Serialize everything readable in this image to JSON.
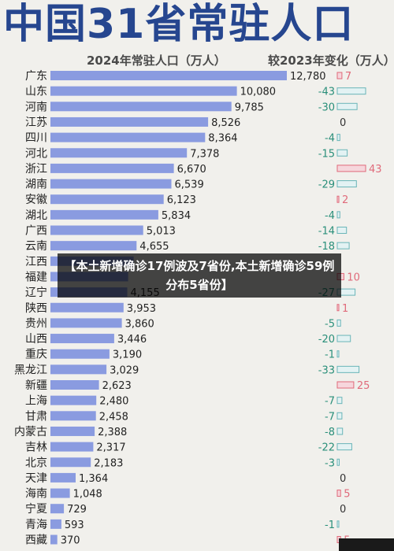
{
  "header": {
    "title": "中国31省常驻人口",
    "subtitle_left": "2024年常驻人口（万人）",
    "subtitle_right": "较2023年变化（万人）"
  },
  "overlay": {
    "text": "【本土新增确诊17例波及7省份,本土新增确诊59例 分布5省份】"
  },
  "colors": {
    "bar": "#8a9be0",
    "positive": "#e06a7a",
    "negative": "#2a8f7a",
    "zero": "#333333",
    "title": "#26468f"
  },
  "chart_data": {
    "type": "bar",
    "orientation": "horizontal",
    "title": "中国31省常驻人口",
    "series": [
      {
        "name": "2024年常驻人口（万人）",
        "values": [
          12780,
          10080,
          9785,
          8526,
          8364,
          7378,
          6670,
          6539,
          6123,
          5834,
          5013,
          4655,
          4500,
          4200,
          4155,
          3953,
          3860,
          3446,
          3190,
          3029,
          2623,
          2480,
          2458,
          2388,
          2317,
          2183,
          1364,
          1048,
          729,
          593,
          370
        ]
      },
      {
        "name": "较2023年变化（万人）",
        "values": [
          7,
          -43,
          -30,
          0,
          -4,
          -15,
          43,
          -29,
          2,
          -4,
          -14,
          -18,
          null,
          10,
          -27,
          1,
          -5,
          -20,
          -1,
          -33,
          25,
          -7,
          -7,
          -8,
          -22,
          -3,
          0,
          5,
          0,
          -1,
          5
        ]
      }
    ],
    "categories": [
      "广东",
      "山东",
      "河南",
      "江苏",
      "四川",
      "河北",
      "浙江",
      "湖南",
      "安徽",
      "湖北",
      "广西",
      "云南",
      "江西",
      "福建",
      "辽宁",
      "陕西",
      "贵州",
      "山西",
      "重庆",
      "黑龙江",
      "新疆",
      "上海",
      "甘肃",
      "内蒙古",
      "吉林",
      "北京",
      "天津",
      "海南",
      "宁夏",
      "青海",
      "西藏"
    ],
    "value_labels": [
      "12,780",
      "10,080",
      "9,785",
      "8,526",
      "8,364",
      "7,378",
      "6,670",
      "6,539",
      "6,123",
      "5,834",
      "5,013",
      "4,655",
      "",
      "",
      "4,155",
      "3,953",
      "3,860",
      "3,446",
      "3,190",
      "3,029",
      "2,623",
      "2,480",
      "2,458",
      "2,388",
      "2,317",
      "2,183",
      "1,364",
      "1,048",
      "729",
      "593",
      "370"
    ],
    "change_labels": [
      "7",
      "-43",
      "-30",
      "0",
      "-4",
      "-15",
      "43",
      "-29",
      "2",
      "-4",
      "-14",
      "-18",
      "",
      "10",
      "-27",
      "1",
      "-5",
      "-20",
      "-1",
      "-33",
      "25",
      "-7",
      "-7",
      "-8",
      "-22",
      "-3",
      "0",
      "5",
      "0",
      "-1",
      "5"
    ],
    "xlim": [
      0,
      12780
    ],
    "change_lim": [
      -43,
      43
    ],
    "grid": false,
    "legend": "none"
  }
}
